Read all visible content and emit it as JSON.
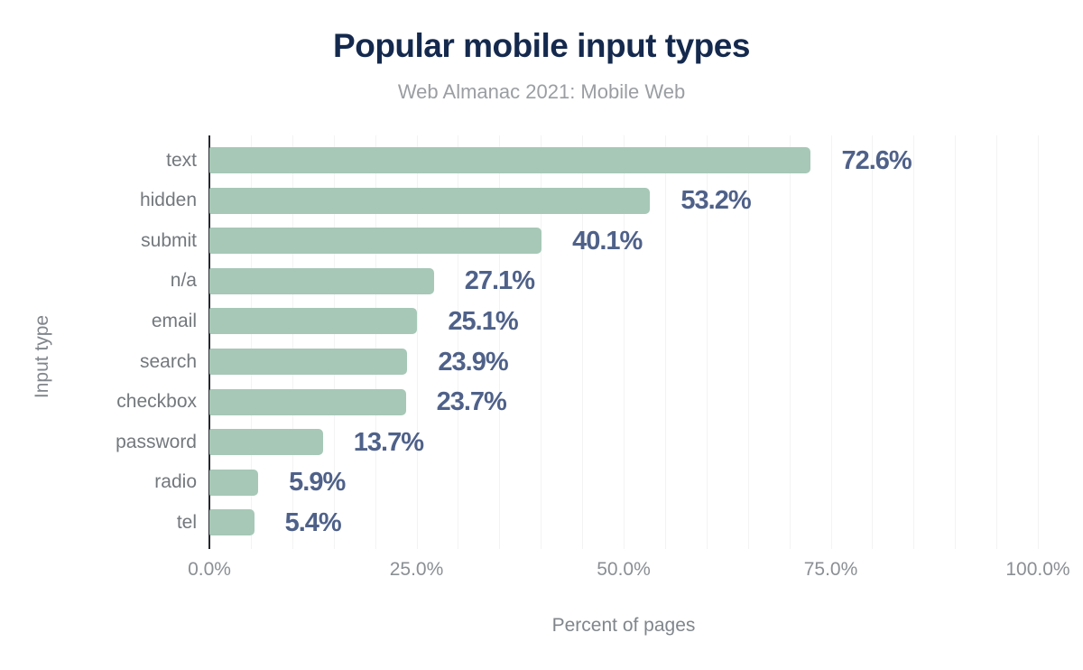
{
  "chart_data": {
    "type": "bar",
    "orientation": "horizontal",
    "title": "Popular mobile input types",
    "subtitle": "Web Almanac 2021: Mobile Web",
    "xlabel": "Percent of pages",
    "ylabel": "Input type",
    "categories": [
      "text",
      "hidden",
      "submit",
      "n/a",
      "email",
      "search",
      "checkbox",
      "password",
      "radio",
      "tel"
    ],
    "values": [
      72.6,
      53.2,
      40.1,
      27.1,
      25.1,
      23.9,
      23.7,
      13.7,
      5.9,
      5.4
    ],
    "value_labels": [
      "72.6%",
      "53.2%",
      "40.1%",
      "27.1%",
      "25.1%",
      "23.9%",
      "23.7%",
      "13.7%",
      "5.9%",
      "5.4%"
    ],
    "xlim": [
      0,
      100
    ],
    "xticks": [
      {
        "value": 0,
        "label": "0.0%"
      },
      {
        "value": 25,
        "label": "25.0%"
      },
      {
        "value": 50,
        "label": "50.0%"
      },
      {
        "value": 75,
        "label": "75.0%"
      },
      {
        "value": 100,
        "label": "100.0%"
      }
    ],
    "grid": {
      "show": true,
      "minor_step_percent": 5
    },
    "legend": "none",
    "colors": {
      "bar_fill": "#a7c8b7",
      "value_label": "#4f6189",
      "title": "#14294d",
      "subtitle": "#9a9ea2",
      "category_label": "#73787d",
      "tick_label": "#8a8f94",
      "axis_title": "#80868c",
      "axis_line": "#26282e",
      "gridline": "#f3f3f4",
      "background": "#ffffff"
    }
  }
}
